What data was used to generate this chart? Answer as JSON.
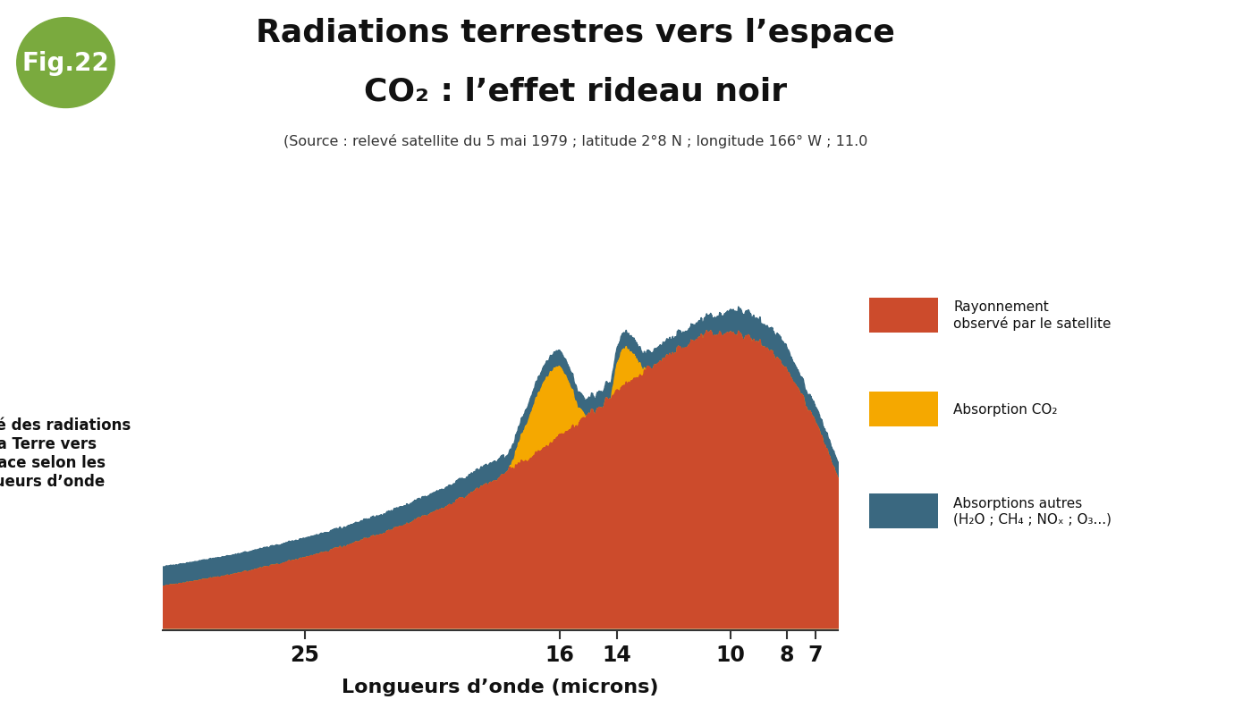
{
  "title_line1": "Radiations terrestres vers l’espace",
  "title_line2": "CO₂ : l’effet rideau noir",
  "subtitle": "(Source : relevé satellite du 5 mai 1979 ; latitude 2°8 N ; longitude 166° W ; 11.0",
  "fig_label": "Fig.22",
  "ylabel": "Intensité des radiations\nde la Terre vers\nl’espace selon les\nlongueurs d’onde",
  "xlabel": "Longueurs d’onde (microns)",
  "legend_items": [
    {
      "label": "Rayonnement\nobservé par le satellite",
      "color": "#cc4b2c"
    },
    {
      "label": "Absorption CO₂",
      "color": "#f5a800"
    },
    {
      "label": "Absorptions autres\n(H₂O ; CH₄ ; NOₓ ; O₃...)",
      "color": "#3a6880"
    }
  ],
  "color_red": "#cc4b2c",
  "color_yellow": "#f5a800",
  "color_blue": "#3a6880",
  "background_color": "#ffffff",
  "fig_label_bg": "#7aaa3e",
  "x_tick_labels": [
    "25",
    "16",
    "14",
    "10",
    "8",
    "7"
  ],
  "x_tick_positions": [
    25,
    16,
    14,
    10,
    8,
    7
  ],
  "xlim": [
    30,
    6.2
  ]
}
